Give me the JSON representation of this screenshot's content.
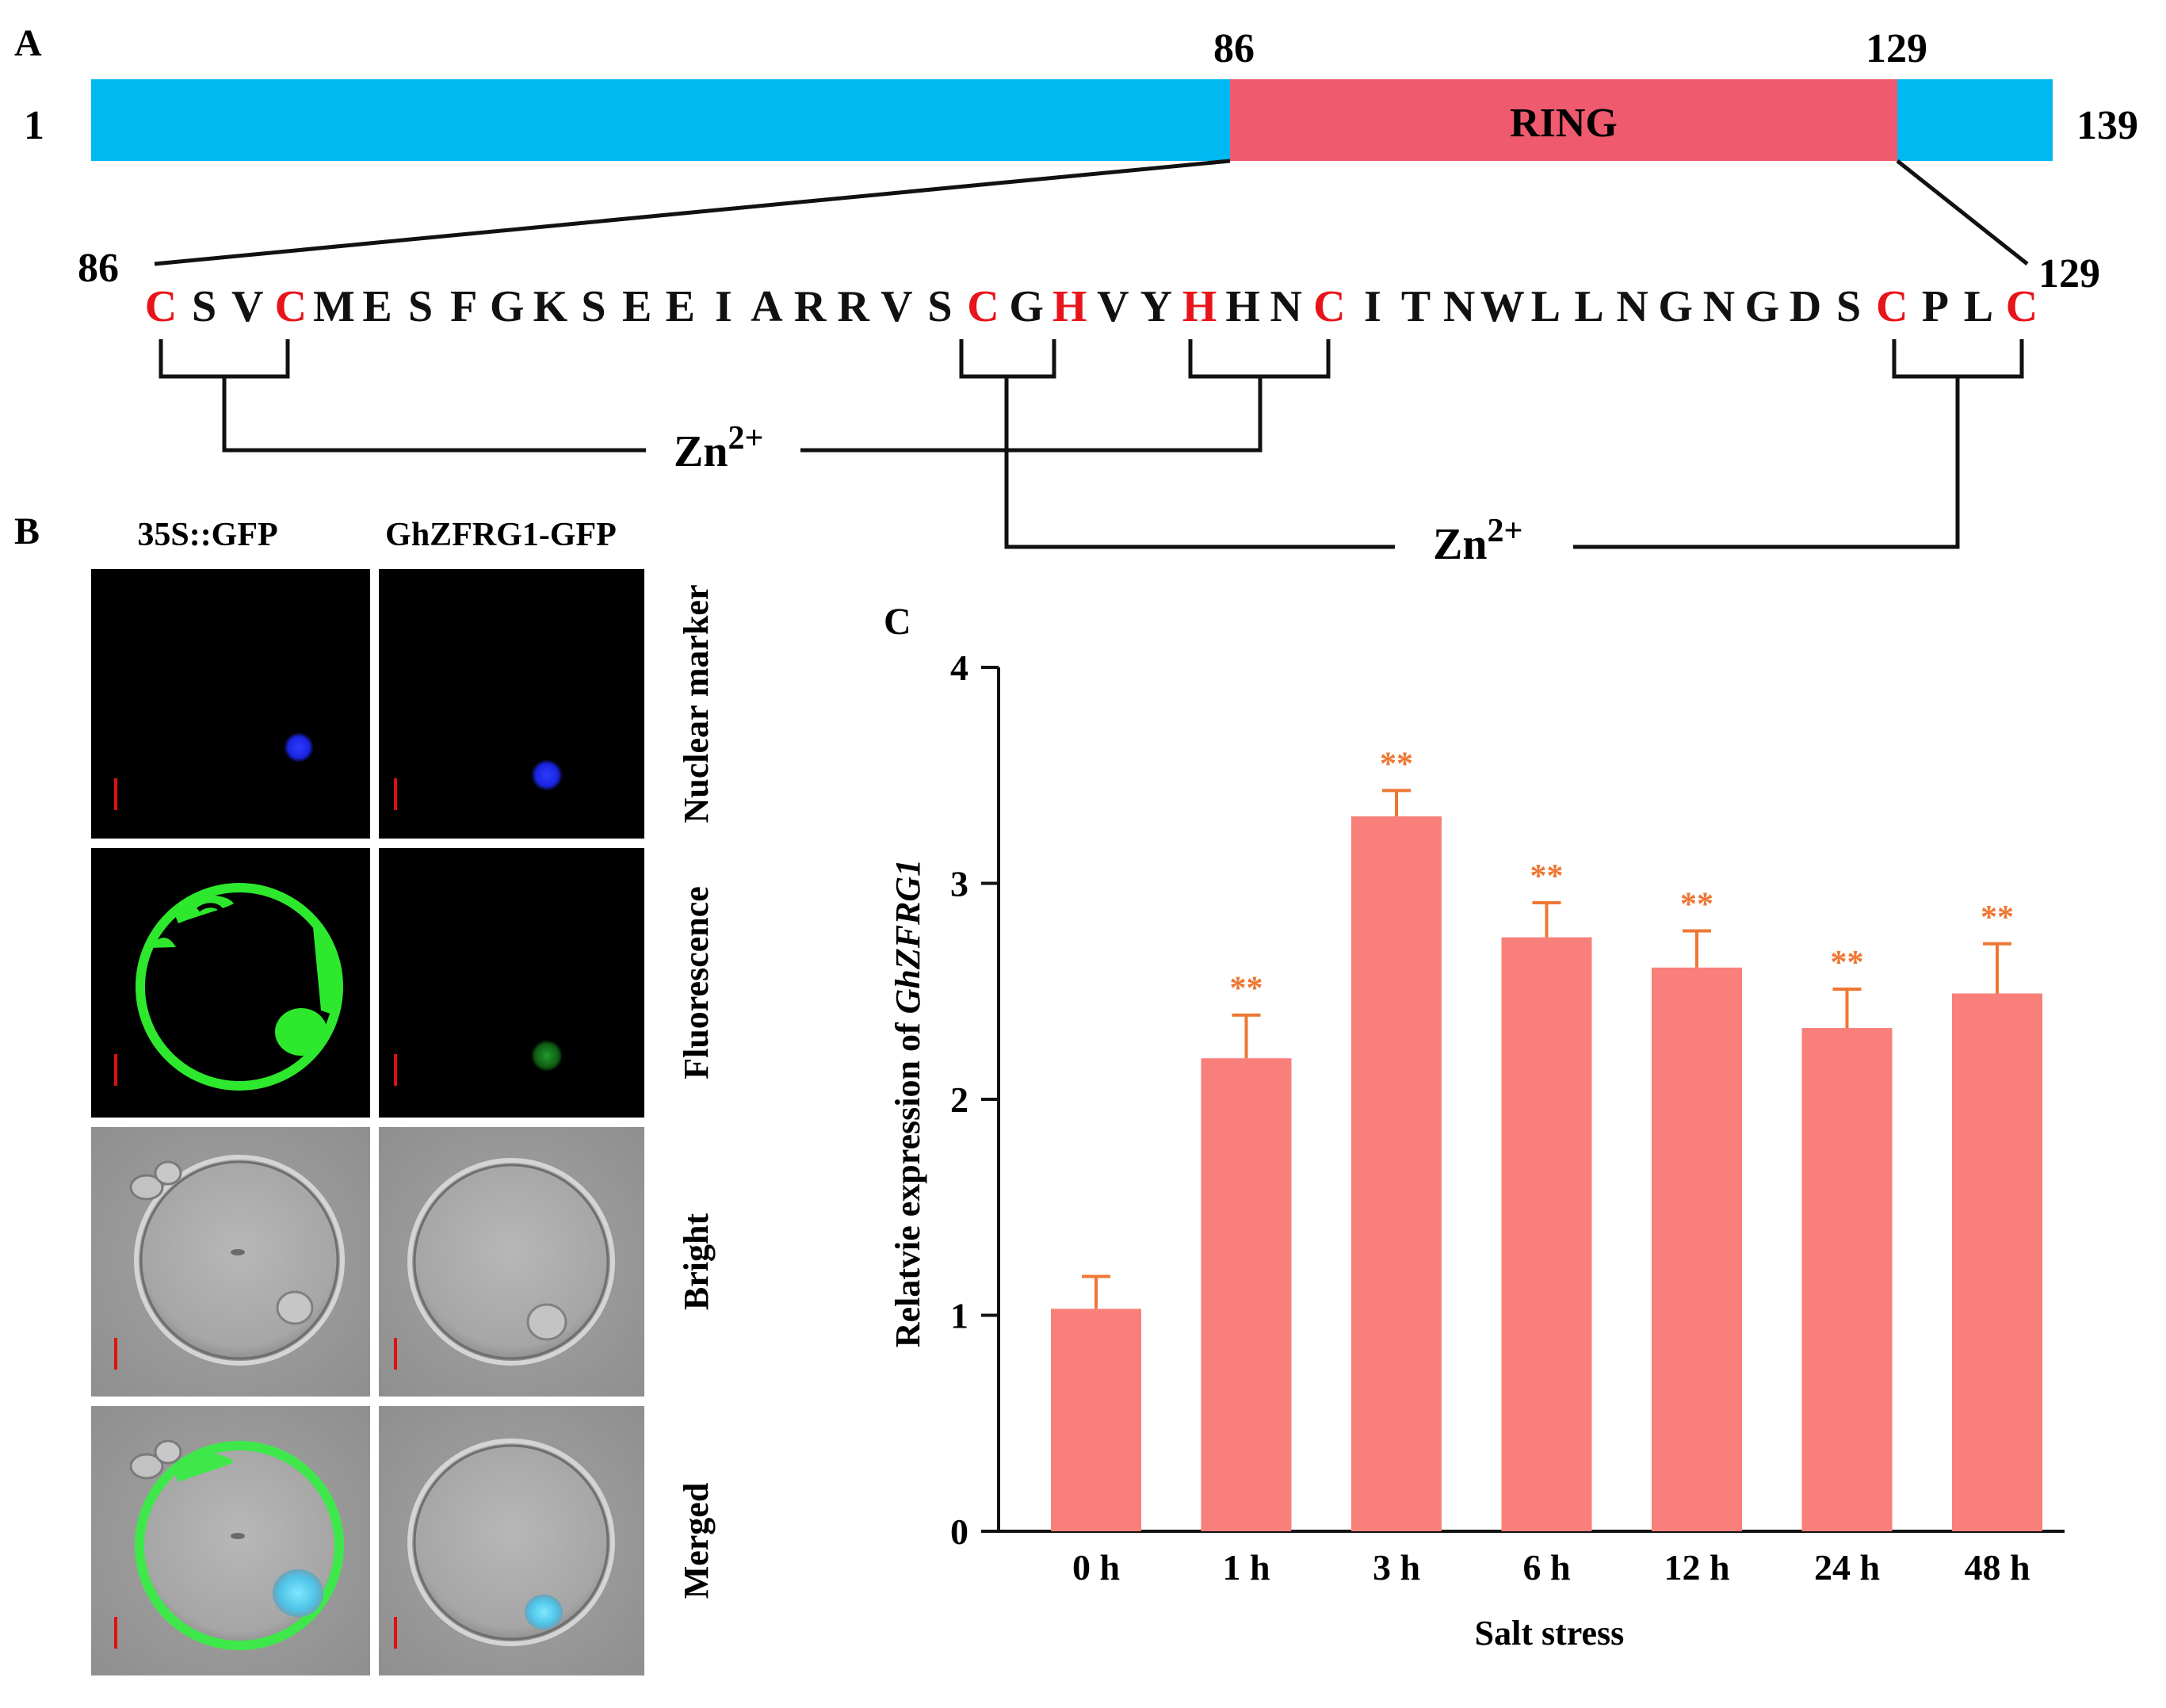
{
  "panel_a": {
    "label": "A",
    "length_start": "1",
    "length_end": "139",
    "domain_start": "86",
    "domain_end": "129",
    "domain_name": "RING",
    "seq_start_label": "86",
    "seq_end_label": "129",
    "sequence": "CSVCMESFGKSEEIARRVSCGHVYHHNCITNWLLNGNGDSCPLC",
    "highlight_positions": [
      0,
      3,
      19,
      21,
      24,
      27,
      40,
      43
    ],
    "zn_label_1_base": "Zn",
    "zn_label_1_sup": "2+",
    "zn_label_2_base": "Zn",
    "zn_label_2_sup": "2+",
    "colors": {
      "protein": "#00b9f1",
      "ring": "#ef5a6f",
      "highlight": "#e8141b"
    }
  },
  "panel_b": {
    "label": "B",
    "columns": [
      "35S::GFP",
      "GhZFRG1-GFP"
    ],
    "rows": [
      "Nuclear marker",
      "Fluorescence",
      "Bright",
      "Merged"
    ]
  },
  "chart_data": {
    "type": "bar",
    "panel_label": "C",
    "categories": [
      "0 h",
      "1 h",
      "3 h",
      "6 h",
      "12 h",
      "24 h",
      "48 h"
    ],
    "values": [
      1.03,
      2.19,
      3.31,
      2.75,
      2.61,
      2.33,
      2.49
    ],
    "errors": [
      0.15,
      0.2,
      0.12,
      0.16,
      0.17,
      0.18,
      0.23
    ],
    "significance": [
      "",
      "**",
      "**",
      "**",
      "**",
      "**",
      "**"
    ],
    "ylim": [
      0,
      4
    ],
    "yticks": [
      0,
      1,
      2,
      3,
      4
    ],
    "xlabel": "Salt stress",
    "ylabel_prefix": "Relatvie expression of ",
    "ylabel_gene": "GhZFRG1",
    "bar_color": "#f87f7a",
    "error_color": "#ee7733",
    "sig_color": "#ee7733"
  }
}
